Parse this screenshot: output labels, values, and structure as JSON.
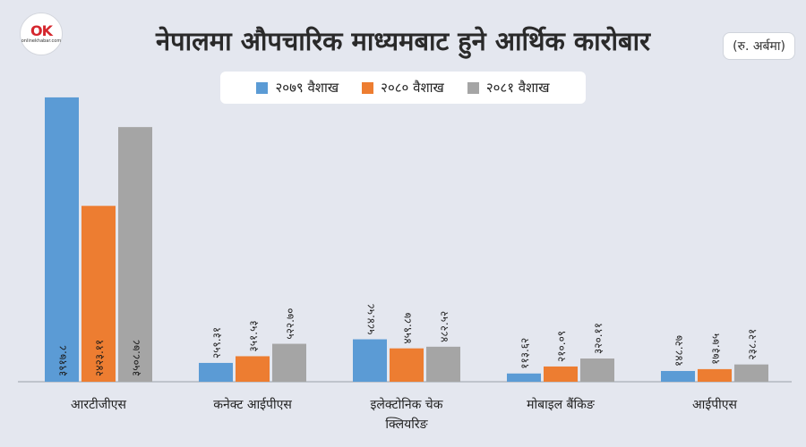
{
  "brand": {
    "mark": "OK",
    "sub": "onlinekhabar.com"
  },
  "title": "नेपालमा औपचारिक माध्यमबाट हुने आर्थिक कारोबार",
  "unit": "(रु. अर्बमा)",
  "chart_data": {
    "type": "bar",
    "title": "नेपालमा औपचारिक माध्यमबाट हुने आर्थिक कारोबार",
    "unit": "(रु. अर्बमा)",
    "categories": [
      "आरटीजीएस",
      "कनेक्ट आईपीएस",
      "इलेक्टोनिक चेक क्लियरिङ",
      "मोबाइल बैंकिङ",
      "आईपीएस"
    ],
    "series": [
      {
        "name": "२०७९ वैशाख",
        "color": "#5b9bd5",
        "values": [
          3917.8,
          259.31,
          584.58,
          113.62,
          148.27
        ],
        "labels": [
          "३९१७.८",
          "२५९.३१",
          "५८४.५८",
          "११३.६२",
          "१४८.२७"
        ]
      },
      {
        "name": "२०८० वैशाख",
        "color": "#ed7d31",
        "values": [
          2423.11,
          351.53,
          459.87,
          210.09,
          173.75
        ],
        "labels": [
          "२४२३.११",
          "३५१.५३",
          "४५९.८७",
          "२१०.०९",
          "१७३.७५"
        ]
      },
      {
        "name": "२०८१ वैशाख",
        "color": "#a5a5a5",
        "values": [
          3508.78,
          522.7,
          482.52,
          320.11,
          238.21
        ],
        "labels": [
          "३५०८.७८",
          "५२२.७०",
          "४८२.५२",
          "३२०.११",
          "२३८.२१"
        ]
      }
    ],
    "ylim": [
      0,
      4000
    ],
    "legend": "top-center",
    "grid": false
  }
}
